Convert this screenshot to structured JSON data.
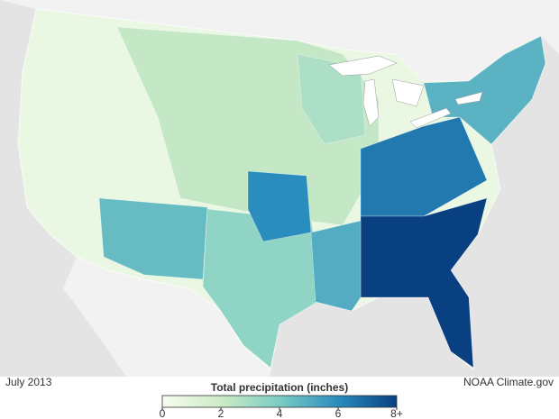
{
  "map": {
    "date_label": "July 2013",
    "credit": "NOAA Climate.gov",
    "legend": {
      "title": "Total precipitation (inches)",
      "range": [
        0,
        8
      ],
      "ticks": [
        0,
        2,
        4,
        6,
        {
          "value": 8,
          "label": "8+"
        }
      ],
      "colors": [
        "#f7fcf0",
        "#ccebc5",
        "#7bccc4",
        "#2b8cbe",
        "#084081"
      ]
    },
    "regions": {
      "values": [
        0.6,
        2.2,
        4.5,
        3.5,
        6,
        6.5,
        8,
        4.8,
        5,
        2.8
      ]
    }
  }
}
